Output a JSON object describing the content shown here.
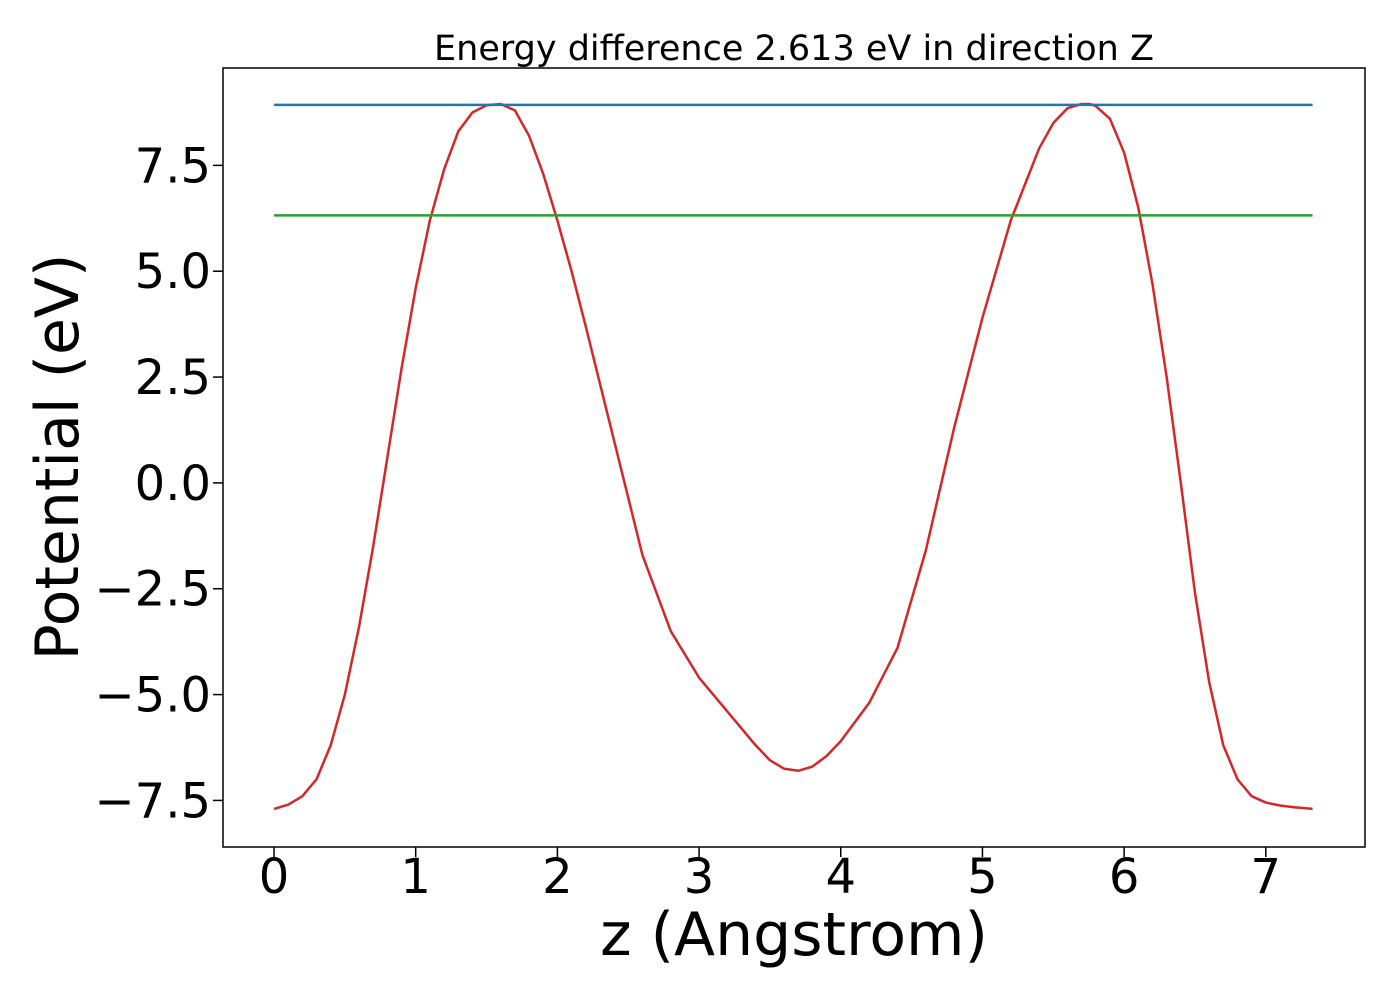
{
  "chart_data": {
    "type": "line",
    "title": "Energy difference 2.613 eV in direction Z",
    "xlabel": "z (Angstrom)",
    "ylabel": "Potential (eV)",
    "xlim": [
      -0.36,
      7.7
    ],
    "ylim": [
      -8.6,
      9.8
    ],
    "xticks": [
      0,
      1,
      2,
      3,
      4,
      5,
      6,
      7
    ],
    "xtick_labels": [
      "0",
      "1",
      "2",
      "3",
      "4",
      "5",
      "6",
      "7"
    ],
    "yticks": [
      -7.5,
      -5.0,
      -2.5,
      0.0,
      2.5,
      5.0,
      7.5
    ],
    "ytick_labels": [
      "−7.5",
      "−5.0",
      "−2.5",
      "0.0",
      "2.5",
      "5.0",
      "7.5"
    ],
    "grid": false,
    "series": [
      {
        "color": "#d62728",
        "x": [
          0.0,
          0.1,
          0.2,
          0.3,
          0.4,
          0.5,
          0.6,
          0.7,
          0.8,
          0.9,
          1.0,
          1.1,
          1.2,
          1.3,
          1.4,
          1.5,
          1.6,
          1.7,
          1.8,
          1.9,
          2.0,
          2.1,
          2.2,
          2.4,
          2.6,
          2.8,
          3.0,
          3.2,
          3.4,
          3.5,
          3.6,
          3.7,
          3.8,
          3.9,
          4.0,
          4.2,
          4.4,
          4.6,
          4.8,
          5.0,
          5.2,
          5.4,
          5.5,
          5.6,
          5.7,
          5.76,
          5.8,
          5.9,
          6.0,
          6.1,
          6.2,
          6.3,
          6.4,
          6.5,
          6.6,
          6.7,
          6.8,
          6.9,
          7.0,
          7.1,
          7.2,
          7.33
        ],
        "y": [
          -7.7,
          -7.6,
          -7.4,
          -7.0,
          -6.2,
          -5.0,
          -3.4,
          -1.5,
          0.6,
          2.7,
          4.6,
          6.2,
          7.4,
          8.3,
          8.75,
          8.92,
          8.95,
          8.8,
          8.2,
          7.3,
          6.2,
          5.0,
          3.7,
          1.0,
          -1.7,
          -3.5,
          -4.6,
          -5.4,
          -6.2,
          -6.55,
          -6.75,
          -6.8,
          -6.7,
          -6.45,
          -6.1,
          -5.2,
          -3.9,
          -1.6,
          1.3,
          3.9,
          6.2,
          7.9,
          8.5,
          8.85,
          8.95,
          8.95,
          8.9,
          8.6,
          7.8,
          6.5,
          4.7,
          2.5,
          0.0,
          -2.6,
          -4.7,
          -6.2,
          -7.0,
          -7.4,
          -7.55,
          -7.62,
          -7.66,
          -7.7
        ]
      },
      {
        "color": "#1f77b4",
        "x": [
          0.0,
          7.33
        ],
        "y": [
          8.93,
          8.93
        ]
      },
      {
        "color": "#2ca02c",
        "x": [
          0.0,
          7.33
        ],
        "y": [
          6.32,
          6.32
        ]
      }
    ]
  }
}
